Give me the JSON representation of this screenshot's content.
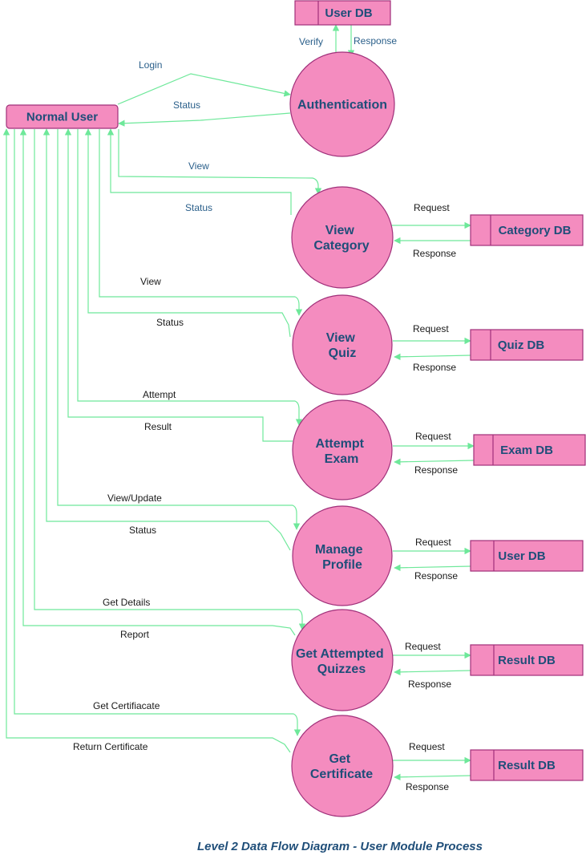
{
  "entities": {
    "normal_user": "Normal User"
  },
  "data_stores": {
    "user_db_top": "User DB",
    "category_db": "Category DB",
    "quiz_db": "Quiz DB",
    "exam_db": "Exam DB",
    "user_db": "User DB",
    "result_db_1": "Result DB",
    "result_db_2": "Result DB"
  },
  "processes": {
    "authentication": [
      "Authentication"
    ],
    "view_category": [
      "View",
      "Category"
    ],
    "view_quiz": [
      "View",
      "Quiz"
    ],
    "attempt_exam": [
      "Attempt",
      "Exam"
    ],
    "manage_profile": [
      "Manage",
      "Profile"
    ],
    "get_attempted_quizzes": [
      "Get Attempted",
      "Quizzes"
    ],
    "get_certificate": [
      "Get",
      "Certificate"
    ]
  },
  "flow_labels": {
    "login": "Login",
    "auth_status": "Status",
    "verify": "Verify",
    "auth_response": "Response",
    "cat_view": "View",
    "cat_status": "Status",
    "cat_request": "Request",
    "cat_response": "Response",
    "quiz_view": "View",
    "quiz_status": "Status",
    "quiz_request": "Request",
    "quiz_response": "Response",
    "attempt": "Attempt",
    "result": "Result",
    "exam_request": "Request",
    "exam_response": "Response",
    "view_update": "View/Update",
    "profile_status": "Status",
    "profile_request": "Request",
    "profile_response": "Response",
    "get_details": "Get Details",
    "report": "Report",
    "gaq_request": "Request",
    "gaq_response": "Response",
    "get_certificate": "Get Certifiacate",
    "return_certificate": "Return Certificate",
    "cert_request": "Request",
    "cert_response": "Response"
  },
  "caption": "Level 2 Data Flow Diagram  - User Module Process",
  "colors": {
    "node_fill": "#f48cbf",
    "node_stroke": "#a0307a",
    "flow": "#6ee89a",
    "text": "#1f4e79"
  }
}
